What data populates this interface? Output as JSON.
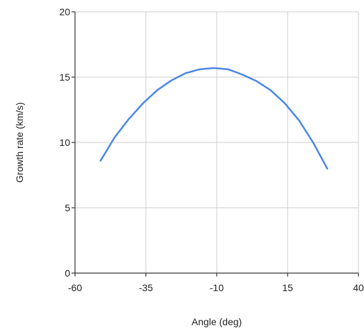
{
  "chart_data": {
    "type": "line",
    "title": "",
    "xlabel": "Angle (deg)",
    "ylabel": "Growth rate (km/s)",
    "xlim": [
      -60,
      40
    ],
    "ylim": [
      0,
      20
    ],
    "xticks": [
      -60,
      -35,
      -10,
      15,
      40
    ],
    "yticks": [
      0,
      5,
      10,
      15,
      20
    ],
    "grid": true,
    "legend": "none",
    "series": [
      {
        "color": "#4a86e8",
        "x": [
          -51,
          -46,
          -41,
          -36,
          -31,
          -26,
          -21,
          -16,
          -11,
          -6,
          -1,
          4,
          9,
          14,
          19,
          24,
          29
        ],
        "y": [
          8.6,
          10.4,
          11.8,
          13.0,
          14.0,
          14.75,
          15.3,
          15.6,
          15.7,
          15.6,
          15.2,
          14.7,
          14.0,
          13.0,
          11.7,
          10.0,
          8.0
        ]
      }
    ]
  }
}
